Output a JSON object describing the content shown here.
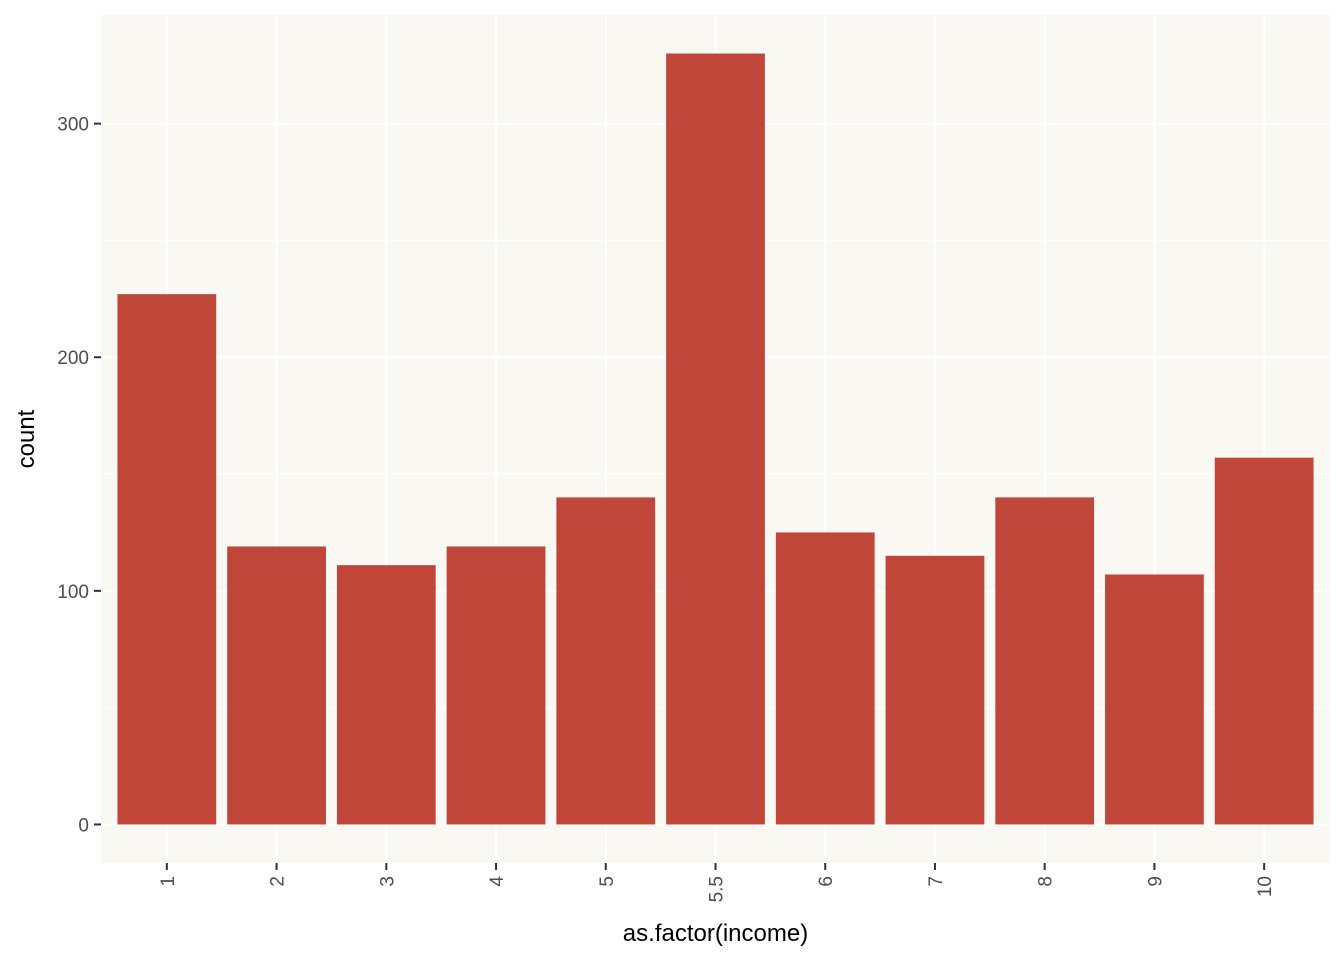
{
  "chart_data": {
    "type": "bar",
    "title": "",
    "xlabel": "as.factor(income)",
    "ylabel": "count",
    "categories": [
      "1",
      "2",
      "3",
      "4",
      "5",
      "5.5",
      "6",
      "7",
      "8",
      "9",
      "10"
    ],
    "values": [
      227,
      119,
      111,
      119,
      140,
      330,
      125,
      115,
      140,
      107,
      157
    ],
    "y_ticks": [
      0,
      100,
      200,
      300
    ],
    "ylim": [
      -16.5,
      346.5
    ],
    "grid": true,
    "legend": "none",
    "colors": {
      "bar": "#c0463a",
      "panel_background": "#f9f8f2",
      "grid": "#ffffff",
      "tick": "#333333"
    }
  }
}
